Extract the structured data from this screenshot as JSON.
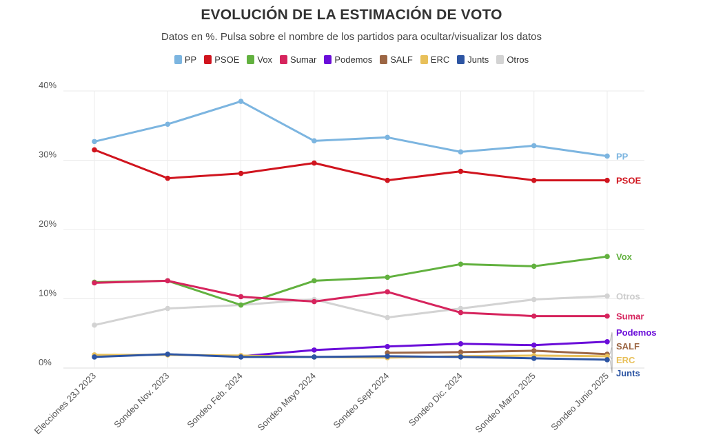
{
  "title": "EVOLUCIÓN DE LA ESTIMACIÓN DE VOTO",
  "subtitle": "Datos en %. Pulsa sobre el nombre de los partidos para ocultar/visualizar los datos",
  "chart_data": {
    "type": "line",
    "categories": [
      "Elecciones 23J 2023",
      "Sondeo Nov. 2023",
      "Sondeo Feb. 2024",
      "Sondeo Mayo 2024",
      "Sondeo Sept 2024",
      "Sondeo Dic. 2024",
      "Sondeo Marzo 2025",
      "Sondeo Junio 2025"
    ],
    "y_ticks": [
      "0%",
      "10%",
      "20%",
      "30%",
      "40%"
    ],
    "ylim": [
      0,
      40
    ],
    "grid": true,
    "legend_position": "top",
    "series": [
      {
        "name": "PP",
        "color": "#7cb5e0",
        "values": [
          32.7,
          35.2,
          38.5,
          32.8,
          33.3,
          31.2,
          32.1,
          30.6
        ],
        "label_color": "#7cb5e0"
      },
      {
        "name": "PSOE",
        "color": "#d0141e",
        "values": [
          31.5,
          27.4,
          28.1,
          29.6,
          27.1,
          28.4,
          27.1,
          27.1
        ],
        "label_color": "#d0141e"
      },
      {
        "name": "Vox",
        "color": "#62b13f",
        "values": [
          12.4,
          12.6,
          9.1,
          12.6,
          13.1,
          15.0,
          14.7,
          16.1
        ],
        "label_color": "#62b13f"
      },
      {
        "name": "Sumar",
        "color": "#d6245d",
        "values": [
          12.3,
          12.6,
          10.3,
          9.6,
          11.0,
          8.0,
          7.5,
          7.5
        ],
        "label_color": "#d6245d"
      },
      {
        "name": "Podemos",
        "color": "#6a0dd9",
        "values": [
          null,
          null,
          1.7,
          2.6,
          3.1,
          3.5,
          3.3,
          3.8
        ],
        "label_color": "#6a0dd9"
      },
      {
        "name": "SALF",
        "color": "#9c6644",
        "values": [
          null,
          null,
          null,
          null,
          2.2,
          2.3,
          2.5,
          2.0
        ],
        "label_color": "#9c6644"
      },
      {
        "name": "ERC",
        "color": "#e8c05a",
        "values": [
          1.9,
          1.9,
          1.8,
          1.6,
          1.5,
          1.7,
          1.8,
          1.7
        ],
        "label_color": "#e8c05a"
      },
      {
        "name": "Junts",
        "color": "#2d55a3",
        "values": [
          1.6,
          2.0,
          1.6,
          1.6,
          1.7,
          1.6,
          1.4,
          1.2
        ],
        "label_color": "#2d55a3"
      },
      {
        "name": "Otros",
        "color": "#d3d3d3",
        "values": [
          6.2,
          8.6,
          9.1,
          9.9,
          7.3,
          8.6,
          9.9,
          10.4
        ],
        "label_color": "#cccccc"
      }
    ]
  }
}
